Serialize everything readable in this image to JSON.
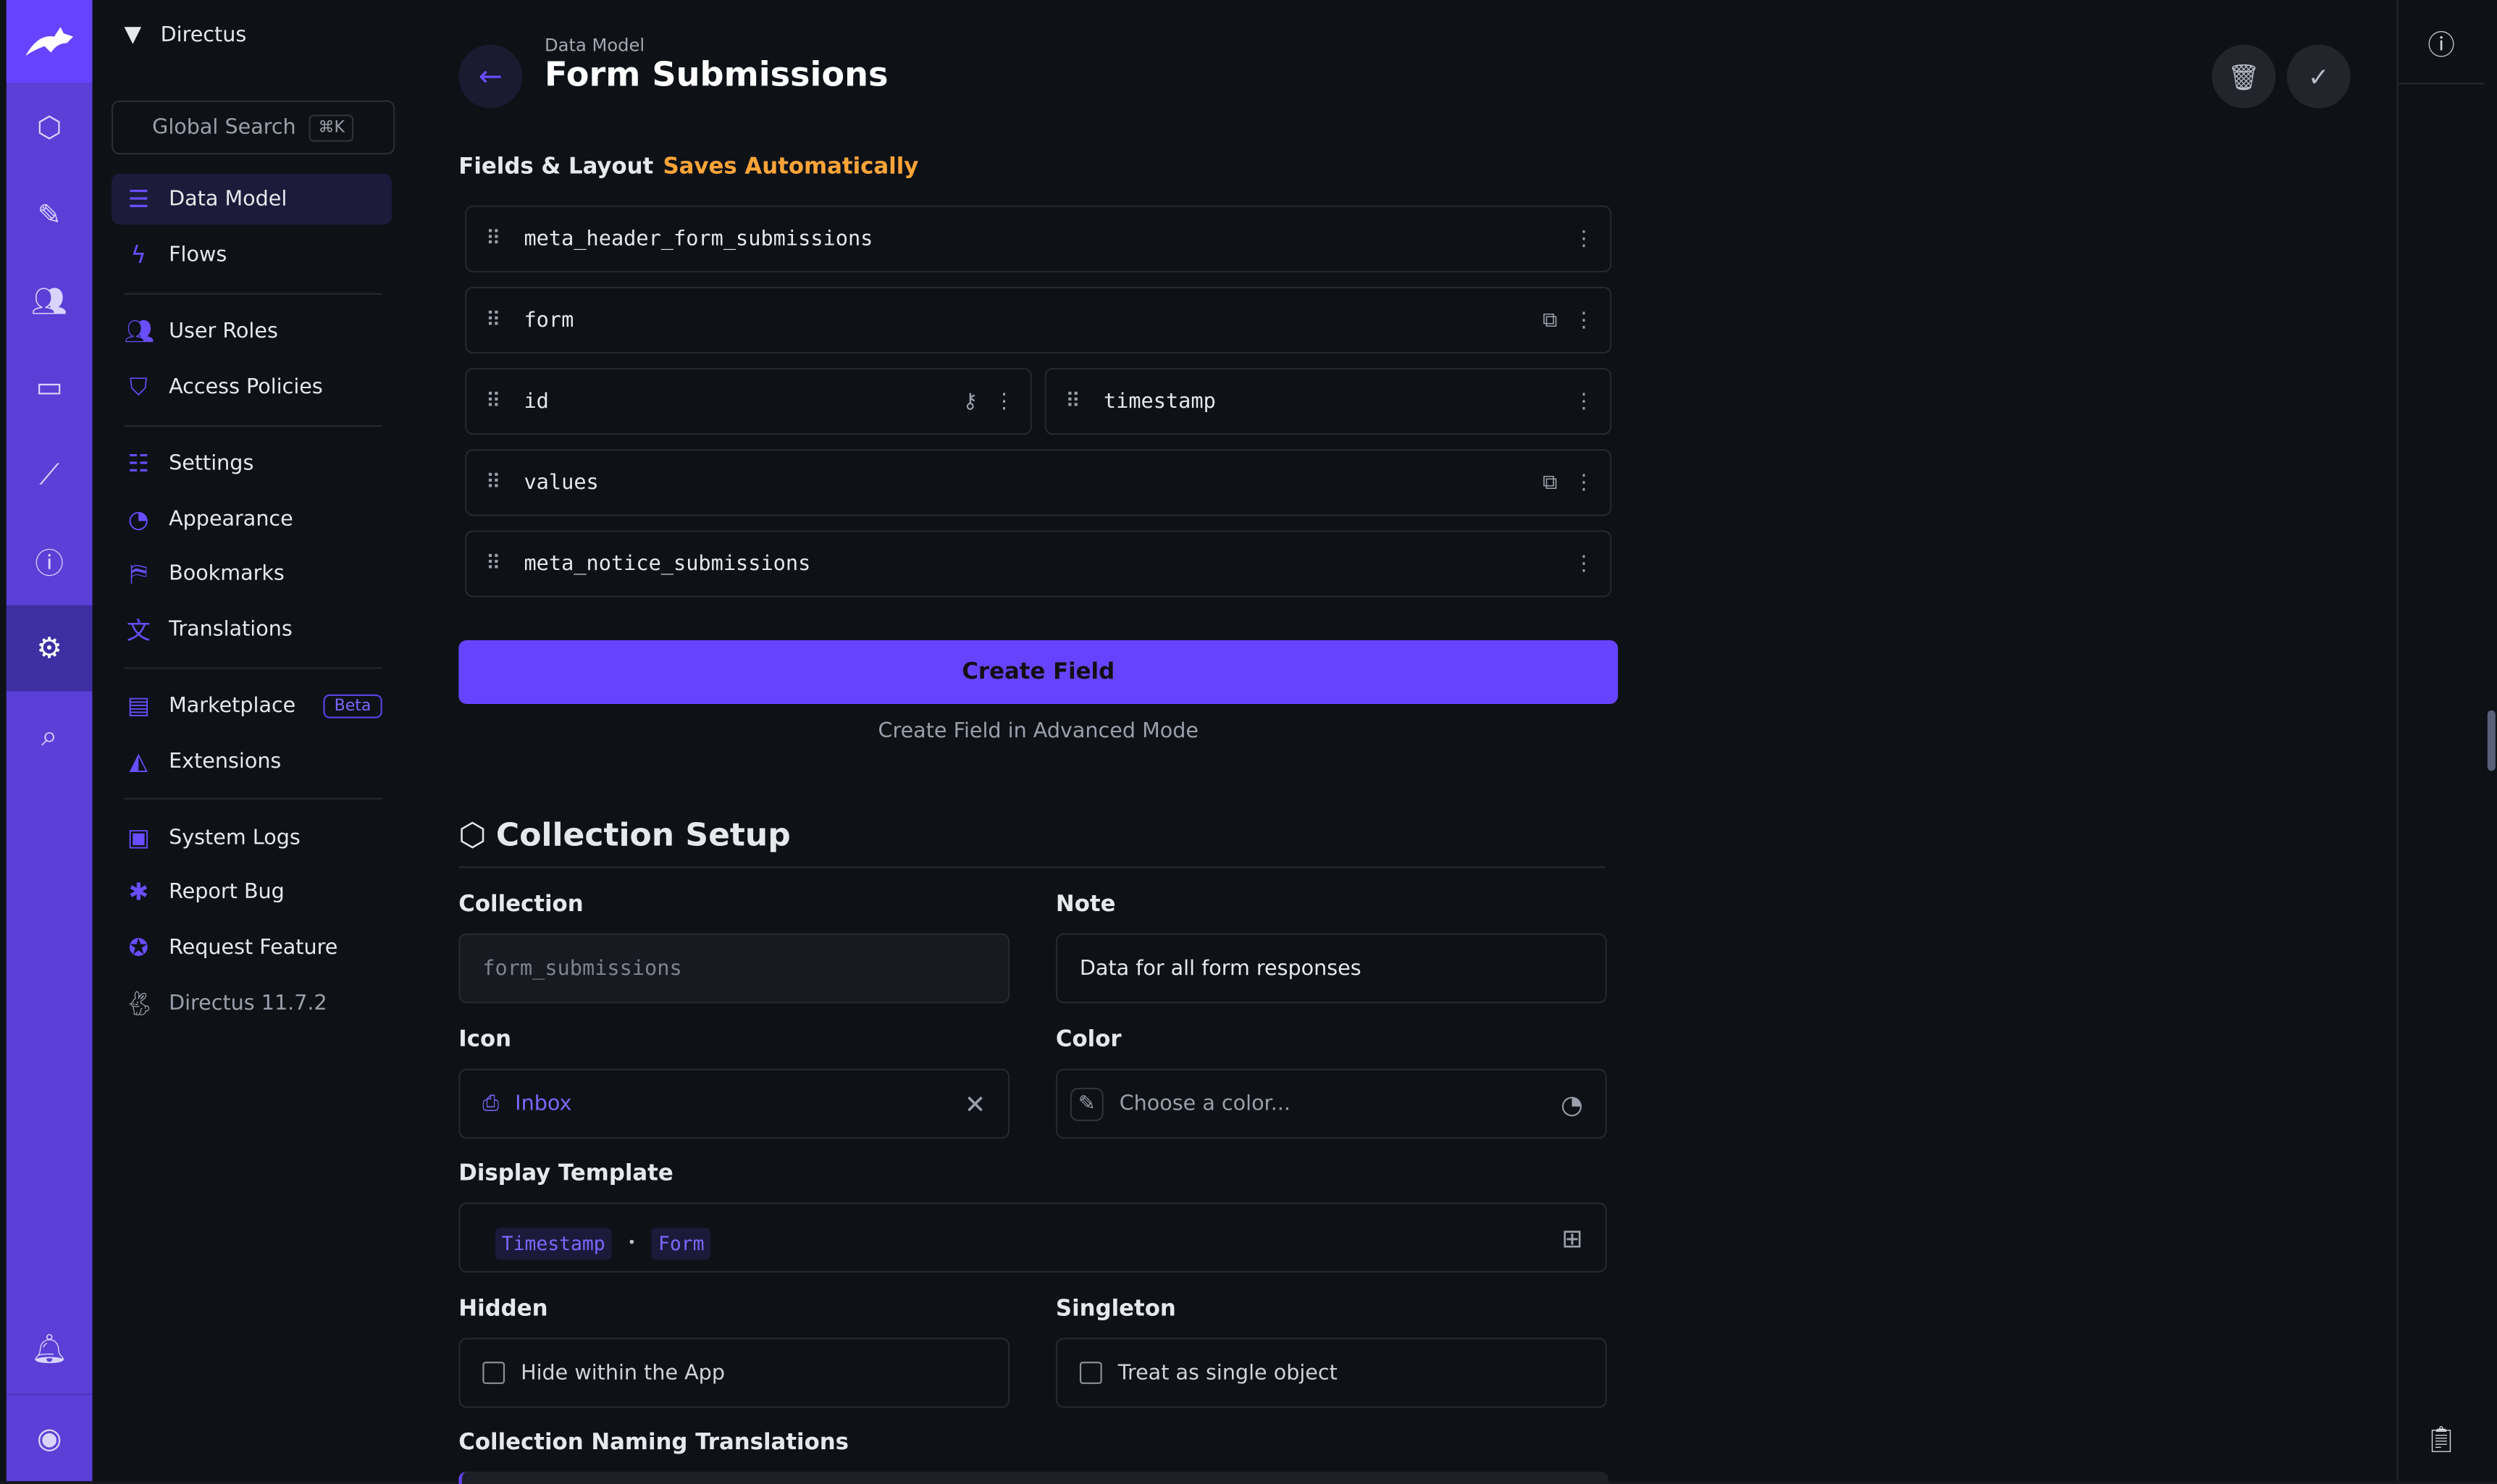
{
  "rail": {
    "items": [
      "collections",
      "content",
      "users",
      "files",
      "insights",
      "help",
      "settings",
      "search"
    ],
    "bottom": [
      "notifications",
      "account"
    ]
  },
  "nav": {
    "project": "Directus",
    "search_label": "Global Search",
    "search_shortcut": "⌘K",
    "items": [
      {
        "label": "Data Model",
        "icon": "database-icon",
        "active": true
      },
      {
        "label": "Flows",
        "icon": "bolt-icon"
      },
      {
        "label": "User Roles",
        "icon": "users-icon"
      },
      {
        "label": "Access Policies",
        "icon": "shield-icon"
      },
      {
        "label": "Settings",
        "icon": "sliders-icon"
      },
      {
        "label": "Appearance",
        "icon": "palette-icon"
      },
      {
        "label": "Bookmarks",
        "icon": "bookmark-icon"
      },
      {
        "label": "Translations",
        "icon": "translate-icon"
      },
      {
        "label": "Marketplace",
        "icon": "store-icon",
        "badge": "Beta"
      },
      {
        "label": "Extensions",
        "icon": "extensions-icon"
      },
      {
        "label": "System Logs",
        "icon": "terminal-icon"
      },
      {
        "label": "Report Bug",
        "icon": "bug-icon"
      },
      {
        "label": "Request Feature",
        "icon": "verified-icon"
      }
    ],
    "version": "Directus 11.7.2"
  },
  "header": {
    "breadcrumb": "Data Model",
    "title": "Form Submissions"
  },
  "fields_section": {
    "title": "Fields & Layout",
    "status": "Saves Automatically"
  },
  "fields": {
    "f0": "meta_header_form_submissions",
    "f1": "form",
    "f2": "id",
    "f3": "timestamp",
    "f4": "values",
    "f5": "meta_notice_submissions"
  },
  "create_field": "Create Field",
  "create_advanced": "Create Field in Advanced Mode",
  "setup": {
    "title": "Collection Setup",
    "collection_label": "Collection",
    "collection_value": "form_submissions",
    "note_label": "Note",
    "note_value": "Data for all form responses",
    "icon_label": "Icon",
    "icon_value": "Inbox",
    "color_label": "Color",
    "color_placeholder": "Choose a color...",
    "template_label": "Display Template",
    "template_tokens": [
      "Timestamp",
      "Form"
    ],
    "template_sep": "•",
    "hidden_label": "Hidden",
    "hidden_text": "Hide within the App",
    "singleton_label": "Singleton",
    "singleton_text": "Treat as single object",
    "translations_label": "Collection Naming Translations"
  },
  "colors": {
    "accent": "#6644ff",
    "warning": "#ffa439",
    "background": "#0e1116"
  }
}
